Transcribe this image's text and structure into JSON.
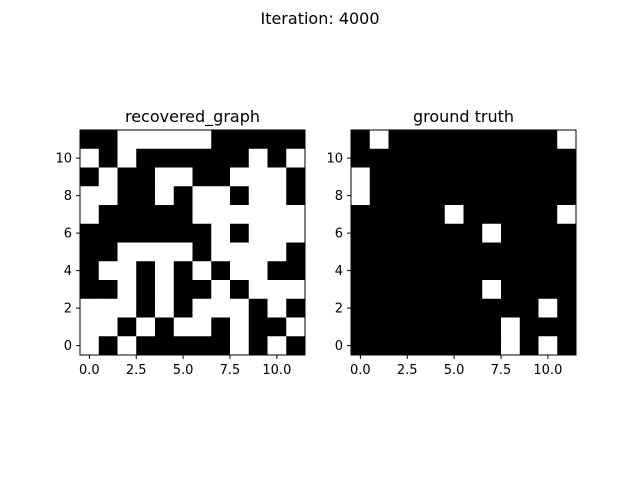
{
  "figure": {
    "suptitle": "Iteration: 4000"
  },
  "chart_data": [
    {
      "type": "heatmap",
      "title": "recovered_graph",
      "colormap": "gray (0 = black, 1 = white)",
      "x_ticks": [
        "0.0",
        "2.5",
        "5.0",
        "7.5",
        "10.0"
      ],
      "y_ticks": [
        "0",
        "2",
        "4",
        "6",
        "8",
        "10"
      ],
      "xlim": [
        -0.5,
        11.5
      ],
      "ylim": [
        11.5,
        -0.5
      ],
      "matrix": [
        [
          0,
          0,
          1,
          1,
          1,
          1,
          1,
          0,
          0,
          0,
          0,
          0
        ],
        [
          1,
          0,
          1,
          0,
          0,
          0,
          0,
          0,
          0,
          1,
          0,
          1
        ],
        [
          0,
          1,
          0,
          0,
          1,
          1,
          0,
          0,
          1,
          1,
          1,
          0
        ],
        [
          1,
          1,
          0,
          0,
          1,
          0,
          1,
          1,
          0,
          1,
          1,
          0
        ],
        [
          1,
          0,
          0,
          0,
          0,
          0,
          1,
          1,
          1,
          1,
          1,
          1
        ],
        [
          0,
          0,
          0,
          0,
          0,
          0,
          0,
          1,
          0,
          1,
          1,
          1
        ],
        [
          0,
          0,
          1,
          1,
          1,
          1,
          0,
          1,
          1,
          1,
          1,
          0
        ],
        [
          0,
          1,
          1,
          0,
          1,
          0,
          1,
          0,
          1,
          1,
          0,
          0
        ],
        [
          0,
          0,
          1,
          0,
          1,
          0,
          0,
          1,
          0,
          1,
          1,
          1
        ],
        [
          1,
          1,
          1,
          0,
          1,
          0,
          1,
          1,
          1,
          0,
          1,
          0
        ],
        [
          1,
          1,
          0,
          1,
          0,
          1,
          1,
          0,
          1,
          0,
          0,
          1
        ],
        [
          1,
          0,
          1,
          0,
          0,
          0,
          0,
          0,
          1,
          0,
          1,
          0
        ]
      ]
    },
    {
      "type": "heatmap",
      "title": "ground truth",
      "colormap": "gray (0 = black, 1 = white)",
      "x_ticks": [
        "0.0",
        "2.5",
        "5.0",
        "7.5",
        "10.0"
      ],
      "y_ticks": [
        "0",
        "2",
        "4",
        "6",
        "8",
        "10"
      ],
      "xlim": [
        -0.5,
        11.5
      ],
      "ylim": [
        11.5,
        -0.5
      ],
      "matrix": [
        [
          0,
          1,
          0,
          0,
          0,
          0,
          0,
          0,
          0,
          0,
          0,
          1
        ],
        [
          0,
          0,
          0,
          0,
          0,
          0,
          0,
          0,
          0,
          0,
          0,
          0
        ],
        [
          1,
          0,
          0,
          0,
          0,
          0,
          0,
          0,
          0,
          0,
          0,
          0
        ],
        [
          1,
          0,
          0,
          0,
          0,
          0,
          0,
          0,
          0,
          0,
          0,
          0
        ],
        [
          0,
          0,
          0,
          0,
          0,
          1,
          0,
          0,
          0,
          0,
          0,
          1
        ],
        [
          0,
          0,
          0,
          0,
          0,
          0,
          0,
          1,
          0,
          0,
          0,
          0
        ],
        [
          0,
          0,
          0,
          0,
          0,
          0,
          0,
          0,
          0,
          0,
          0,
          0
        ],
        [
          0,
          0,
          0,
          0,
          0,
          0,
          0,
          0,
          0,
          0,
          0,
          0
        ],
        [
          0,
          0,
          0,
          0,
          0,
          0,
          0,
          1,
          0,
          0,
          0,
          0
        ],
        [
          0,
          0,
          0,
          0,
          0,
          0,
          0,
          0,
          0,
          0,
          1,
          0
        ],
        [
          0,
          0,
          0,
          0,
          0,
          0,
          0,
          0,
          1,
          0,
          0,
          0
        ],
        [
          0,
          0,
          0,
          0,
          0,
          0,
          0,
          0,
          1,
          0,
          1,
          0
        ]
      ]
    }
  ]
}
